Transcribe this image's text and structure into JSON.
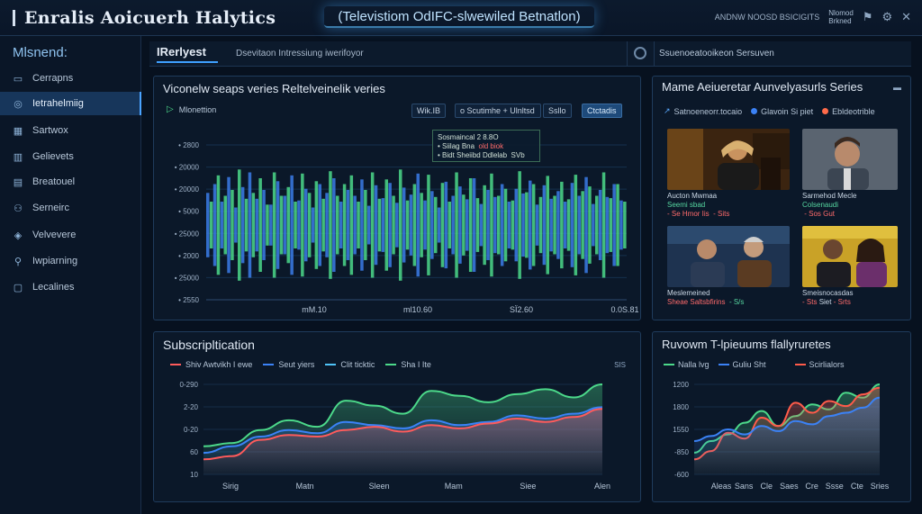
{
  "app": {
    "title": "Enralis Aoicuerh Halytics",
    "center_title": "(Televistiom OdIFC-slwewiled Betnatlon)",
    "top_right_text": "ANDNW NOOSD BSICIGITS",
    "user_line1": "Nlomod",
    "user_line2": "Brkned"
  },
  "sidebar": {
    "heading": "Mlsnend:",
    "items": [
      {
        "label": "Cerrapns",
        "icon": "monitor-icon"
      },
      {
        "label": "Ietrahelmiig",
        "icon": "analytics-icon"
      },
      {
        "label": "Sartwox",
        "icon": "grid-icon"
      },
      {
        "label": "Gelievets",
        "icon": "chart-icon"
      },
      {
        "label": "Breatouel",
        "icon": "archive-icon"
      },
      {
        "label": "Serneirc",
        "icon": "users-icon"
      },
      {
        "label": "Velvevere",
        "icon": "shield-icon"
      },
      {
        "label": "Iwpiarning",
        "icon": "person-icon"
      },
      {
        "label": "Lecalines",
        "icon": "bookmark-icon"
      }
    ]
  },
  "tabbar": {
    "active_tab": "IRerlyest",
    "subtitle": "Dsevitaon Intressiung iwerifoyor",
    "right_text": "Ssuenoeatooikeon Sersuven"
  },
  "main_panel": {
    "title": "Viconelw seaps veries Reltelveinelik veries",
    "legend": "Mlonettion",
    "chip1": "Wik.IB",
    "chip2": "o Scutimhe + Ulnltsd",
    "chip3": "Ssllo",
    "chip4": "Ctctadis",
    "tooltip_line1": "Sosmaincal 2 8.8O",
    "tooltip_line2": "• Siilag Bna",
    "tooltip_line2_red": "old biok",
    "tooltip_line3": "• Bidt Sheiibd Ddlelab",
    "tooltip_line3_end": "SVb"
  },
  "series_panel": {
    "title": "Mame Aeiueretar Aunvelyasurls Series",
    "legend": [
      {
        "label": "Satnoeneorr.tocaio",
        "color": "#5aa9ff"
      },
      {
        "label": "Glavoin Si piet",
        "color": "#3b82f6"
      },
      {
        "label": "Ebldeotrible",
        "color": "#ff6b4a"
      }
    ],
    "thumbs": [
      {
        "title": "Aucton Mwmaa",
        "sub1": "Seemi sbad",
        "sub2": "- Se Hmor Iis",
        "sub3": "- Sits"
      },
      {
        "title": "Sarmehod Mecle",
        "sub1": "Colsenaudi",
        "sub2": "",
        "sub3": "- Sos Gut"
      },
      {
        "title": "Meslemeined",
        "sub1": "Sheae Saltsbfirins",
        "sub2": "",
        "sub3": "- S/s"
      },
      {
        "title": "Smeisnocasdas",
        "sub1": "Siet",
        "sub2": "- Sts",
        "sub3": "- Srts"
      }
    ]
  },
  "sub_panel": {
    "title": "Subscripltication",
    "legend": [
      {
        "label": "Shiv Awtvikh I ewe",
        "color": "#ff5b5b"
      },
      {
        "label": "Seut yiers",
        "color": "#3b82f6"
      },
      {
        "label": "Clit ticktic",
        "color": "#4fc3f7"
      },
      {
        "label": "Sha I Ite",
        "color": "#4cd98a"
      }
    ],
    "corner": "SIS"
  },
  "retention_panel": {
    "title": "Ruvowm T-lpieuums flallyruretes",
    "legend": [
      {
        "label": "Nalla lvg",
        "color": "#4cd98a"
      },
      {
        "label": "Guliu Sht",
        "color": "#3b82f6"
      },
      {
        "label": "Scirlialors",
        "color": "#ff5b4a"
      }
    ]
  },
  "chart_data": [
    {
      "type": "bar",
      "title": "Viconelw seaps veries Reltelveinelik veries",
      "ylabels": [
        "2800",
        "20000",
        "20000",
        "5000",
        "25000",
        "2000",
        "25000",
        "2550"
      ],
      "xlabels": [
        "mM.10",
        "ml10.60",
        "SÏ2.60",
        "0.0S.81"
      ],
      "series": [
        {
          "name": "",
          "color": "#3b7de8",
          "values": [
            0.55,
            0.7,
            0.4,
            0.82,
            0.3,
            0.65,
            0.9,
            0.45,
            0.6,
            0.35,
            0.75,
            0.5,
            0.85,
            0.42,
            0.62,
            0.3,
            0.7,
            0.55,
            0.8,
            0.4,
            0.6,
            0.5,
            0.78,
            0.33,
            0.68,
            0.46,
            0.72,
            0.38,
            0.64,
            0.52,
            0.88,
            0.42,
            0.58,
            0.3,
            0.74,
            0.5,
            0.66,
            0.44,
            0.8,
            0.36,
            0.6,
            0.48,
            0.7,
            0.4,
            0.62,
            0.54,
            0.76,
            0.35,
            0.68,
            0.45,
            0.58,
            0.4,
            0.72,
            0.5,
            0.82,
            0.36,
            0.6,
            0.48,
            0.7,
            0.42
          ]
        },
        {
          "name": "",
          "color": "#4cd98a",
          "values": [
            0.4,
            0.85,
            0.5,
            0.6,
            0.95,
            0.45,
            0.55,
            0.8,
            0.35,
            0.9,
            0.5,
            0.65,
            0.4,
            0.88,
            0.55,
            0.75,
            0.45,
            0.92,
            0.5,
            0.7,
            0.85,
            0.4,
            0.6,
            0.9,
            0.45,
            0.78,
            0.5,
            0.95,
            0.42,
            0.7,
            0.55,
            0.86,
            0.48,
            0.72,
            0.4,
            0.9,
            0.52,
            0.8,
            0.46,
            0.68,
            0.88,
            0.5,
            0.62,
            0.42,
            0.92,
            0.56,
            0.7,
            0.48,
            0.84,
            0.5,
            0.74,
            0.44,
            0.86,
            0.58,
            0.66,
            0.5,
            0.9,
            0.46,
            0.7,
            0.4
          ]
        }
      ]
    },
    {
      "type": "area",
      "title": "Subscripltication",
      "ylabels": [
        "0-290",
        "2-20",
        "0-20",
        "60",
        "10"
      ],
      "xlabels": [
        "Sirig",
        "Matn",
        "Sleen",
        "Mam",
        "Siee",
        "Alen"
      ],
      "series": [
        {
          "name": "Sha I Ite",
          "color": "#4cd98a",
          "values": [
            18,
            20,
            28,
            34,
            30,
            46,
            43,
            38,
            52,
            49,
            45,
            50,
            53,
            48,
            56
          ]
        },
        {
          "name": "Seut yiers",
          "color": "#3b82f6",
          "values": [
            14,
            18,
            24,
            28,
            26,
            33,
            31,
            29,
            34,
            31,
            33,
            37,
            35,
            38,
            42
          ]
        },
        {
          "name": "Shiv Awtvikh I ewe",
          "color": "#ff5b5b",
          "values": [
            10,
            12,
            22,
            25,
            24,
            28,
            30,
            27,
            31,
            29,
            32,
            35,
            33,
            36,
            41
          ]
        }
      ]
    },
    {
      "type": "area",
      "title": "Ruvowm T-lpieuums flallyruretes",
      "ylabels": [
        "1200",
        "1800",
        "1550",
        "-850",
        "-600"
      ],
      "xlabels": [
        "Aleas",
        "Sans",
        "Cle",
        "Saes",
        "Cre",
        "Ssse",
        "Cte",
        "Sries"
      ],
      "series": [
        {
          "name": "Nalla lvg",
          "color": "#4cd98a",
          "values": [
            38,
            52,
            60,
            74,
            88,
            70,
            82,
            96,
            90,
            110,
            104,
            120
          ]
        },
        {
          "name": "Scirlialors",
          "color": "#ff5b4a",
          "values": [
            30,
            40,
            62,
            55,
            80,
            70,
            98,
            86,
            100,
            94,
            108,
            116
          ]
        },
        {
          "name": "Guliu Sht",
          "color": "#3b82f6",
          "values": [
            52,
            58,
            66,
            60,
            70,
            64,
            76,
            72,
            82,
            86,
            92,
            104
          ]
        }
      ]
    }
  ]
}
